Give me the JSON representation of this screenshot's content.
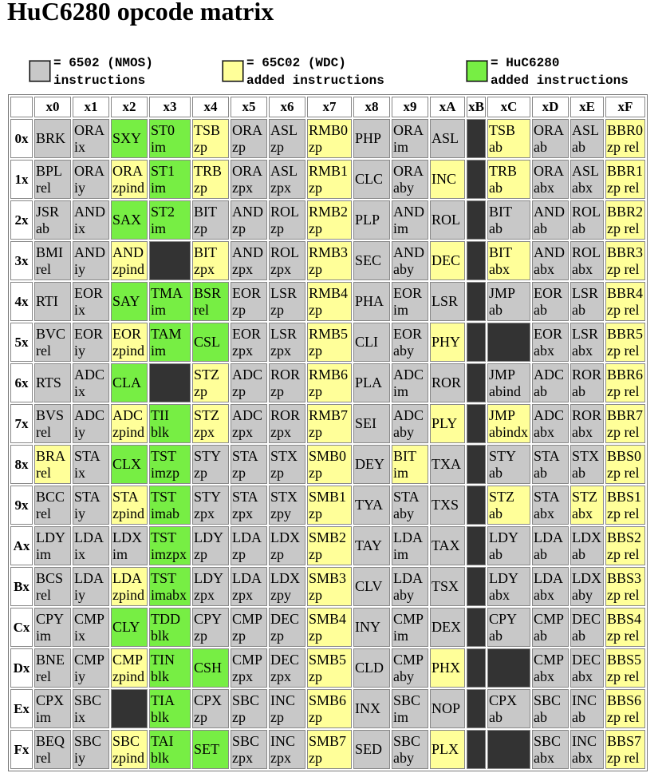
{
  "title": "HuC6280 opcode matrix",
  "legend": [
    {
      "line1": "= 6502 (NMOS)",
      "line2": "instructions",
      "color": "#c8c8c8"
    },
    {
      "line1": "= 65C02 (WDC)",
      "line2": "added instructions",
      "color": "#ffff99"
    },
    {
      "line1": "= HuC6280",
      "line2": "added instructions",
      "color": "#77ee44"
    }
  ],
  "col_headers": [
    "x0",
    "x1",
    "x2",
    "x3",
    "x4",
    "x5",
    "x6",
    "x7",
    "x8",
    "x9",
    "xA",
    "xB",
    "xC",
    "xD",
    "xE",
    "xF"
  ],
  "rows": [
    {
      "label": "0x",
      "cells": [
        [
          "BRK",
          "",
          "n"
        ],
        [
          "ORA",
          "ix",
          "n"
        ],
        [
          "SXY",
          "",
          "h"
        ],
        [
          "ST0",
          "im",
          "h"
        ],
        [
          "TSB",
          "zp",
          "w"
        ],
        [
          "ORA",
          "zp",
          "n"
        ],
        [
          "ASL",
          "zp",
          "n"
        ],
        [
          "RMB0",
          "zp",
          "w"
        ],
        [
          "PHP",
          "",
          "n"
        ],
        [
          "ORA",
          "im",
          "n"
        ],
        [
          "ASL",
          "",
          "n"
        ],
        [
          "",
          "",
          "x"
        ],
        [
          "TSB",
          "ab",
          "w"
        ],
        [
          "ORA",
          "ab",
          "n"
        ],
        [
          "ASL",
          "ab",
          "n"
        ],
        [
          "BBR0",
          "zp rel",
          "w"
        ]
      ]
    },
    {
      "label": "1x",
      "cells": [
        [
          "BPL",
          "rel",
          "n"
        ],
        [
          "ORA",
          "iy",
          "n"
        ],
        [
          "ORA",
          "zpind",
          "w"
        ],
        [
          "ST1",
          "im",
          "h"
        ],
        [
          "TRB",
          "zp",
          "w"
        ],
        [
          "ORA",
          "zpx",
          "n"
        ],
        [
          "ASL",
          "zpx",
          "n"
        ],
        [
          "RMB1",
          "zp",
          "w"
        ],
        [
          "CLC",
          "",
          "n"
        ],
        [
          "ORA",
          "aby",
          "n"
        ],
        [
          "INC",
          "",
          "w"
        ],
        [
          "",
          "",
          "x"
        ],
        [
          "TRB",
          "ab",
          "w"
        ],
        [
          "ORA",
          "abx",
          "n"
        ],
        [
          "ASL",
          "abx",
          "n"
        ],
        [
          "BBR1",
          "zp rel",
          "w"
        ]
      ]
    },
    {
      "label": "2x",
      "cells": [
        [
          "JSR",
          "ab",
          "n"
        ],
        [
          "AND",
          "ix",
          "n"
        ],
        [
          "SAX",
          "",
          "h"
        ],
        [
          "ST2",
          "im",
          "h"
        ],
        [
          "BIT",
          "zp",
          "n"
        ],
        [
          "AND",
          "zp",
          "n"
        ],
        [
          "ROL",
          "zp",
          "n"
        ],
        [
          "RMB2",
          "zp",
          "w"
        ],
        [
          "PLP",
          "",
          "n"
        ],
        [
          "AND",
          "im",
          "n"
        ],
        [
          "ROL",
          "",
          "n"
        ],
        [
          "",
          "",
          "x"
        ],
        [
          "BIT",
          "ab",
          "n"
        ],
        [
          "AND",
          "ab",
          "n"
        ],
        [
          "ROL",
          "ab",
          "n"
        ],
        [
          "BBR2",
          "zp rel",
          "w"
        ]
      ]
    },
    {
      "label": "3x",
      "cells": [
        [
          "BMI",
          "rel",
          "n"
        ],
        [
          "AND",
          "iy",
          "n"
        ],
        [
          "AND",
          "zpind",
          "w"
        ],
        [
          "",
          "",
          "x"
        ],
        [
          "BIT",
          "zpx",
          "w"
        ],
        [
          "AND",
          "zpx",
          "n"
        ],
        [
          "ROL",
          "zpx",
          "n"
        ],
        [
          "RMB3",
          "zp",
          "w"
        ],
        [
          "SEC",
          "",
          "n"
        ],
        [
          "AND",
          "aby",
          "n"
        ],
        [
          "DEC",
          "",
          "w"
        ],
        [
          "",
          "",
          "x"
        ],
        [
          "BIT",
          "abx",
          "w"
        ],
        [
          "AND",
          "abx",
          "n"
        ],
        [
          "ROL",
          "abx",
          "n"
        ],
        [
          "BBR3",
          "zp rel",
          "w"
        ]
      ]
    },
    {
      "label": "4x",
      "cells": [
        [
          "RTI",
          "",
          "n"
        ],
        [
          "EOR",
          "ix",
          "n"
        ],
        [
          "SAY",
          "",
          "h"
        ],
        [
          "TMA",
          "im",
          "h"
        ],
        [
          "BSR",
          "rel",
          "h"
        ],
        [
          "EOR",
          "zp",
          "n"
        ],
        [
          "LSR",
          "zp",
          "n"
        ],
        [
          "RMB4",
          "zp",
          "w"
        ],
        [
          "PHA",
          "",
          "n"
        ],
        [
          "EOR",
          "im",
          "n"
        ],
        [
          "LSR",
          "",
          "n"
        ],
        [
          "",
          "",
          "x"
        ],
        [
          "JMP",
          "ab",
          "n"
        ],
        [
          "EOR",
          "ab",
          "n"
        ],
        [
          "LSR",
          "ab",
          "n"
        ],
        [
          "BBR4",
          "zp rel",
          "w"
        ]
      ]
    },
    {
      "label": "5x",
      "cells": [
        [
          "BVC",
          "rel",
          "n"
        ],
        [
          "EOR",
          "iy",
          "n"
        ],
        [
          "EOR",
          "zpind",
          "w"
        ],
        [
          "TAM",
          "im",
          "h"
        ],
        [
          "CSL",
          "",
          "h"
        ],
        [
          "EOR",
          "zpx",
          "n"
        ],
        [
          "LSR",
          "zpx",
          "n"
        ],
        [
          "RMB5",
          "zp",
          "w"
        ],
        [
          "CLI",
          "",
          "n"
        ],
        [
          "EOR",
          "aby",
          "n"
        ],
        [
          "PHY",
          "",
          "w"
        ],
        [
          "",
          "",
          "x"
        ],
        [
          "",
          "",
          "x"
        ],
        [
          "EOR",
          "abx",
          "n"
        ],
        [
          "LSR",
          "abx",
          "n"
        ],
        [
          "BBR5",
          "zp rel",
          "w"
        ]
      ]
    },
    {
      "label": "6x",
      "cells": [
        [
          "RTS",
          "",
          "n"
        ],
        [
          "ADC",
          "ix",
          "n"
        ],
        [
          "CLA",
          "",
          "h"
        ],
        [
          "",
          "",
          "x"
        ],
        [
          "STZ",
          "zp",
          "w"
        ],
        [
          "ADC",
          "zp",
          "n"
        ],
        [
          "ROR",
          "zp",
          "n"
        ],
        [
          "RMB6",
          "zp",
          "w"
        ],
        [
          "PLA",
          "",
          "n"
        ],
        [
          "ADC",
          "im",
          "n"
        ],
        [
          "ROR",
          "",
          "n"
        ],
        [
          "",
          "",
          "x"
        ],
        [
          "JMP",
          "abind",
          "n"
        ],
        [
          "ADC",
          "ab",
          "n"
        ],
        [
          "ROR",
          "ab",
          "n"
        ],
        [
          "BBR6",
          "zp rel",
          "w"
        ]
      ]
    },
    {
      "label": "7x",
      "cells": [
        [
          "BVS",
          "rel",
          "n"
        ],
        [
          "ADC",
          "iy",
          "n"
        ],
        [
          "ADC",
          "zpind",
          "w"
        ],
        [
          "TII",
          "blk",
          "h"
        ],
        [
          "STZ",
          "zpx",
          "w"
        ],
        [
          "ADC",
          "zpx",
          "n"
        ],
        [
          "ROR",
          "zpx",
          "n"
        ],
        [
          "RMB7",
          "zp",
          "w"
        ],
        [
          "SEI",
          "",
          "n"
        ],
        [
          "ADC",
          "aby",
          "n"
        ],
        [
          "PLY",
          "",
          "w"
        ],
        [
          "",
          "",
          "x"
        ],
        [
          "JMP",
          "abindx",
          "w"
        ],
        [
          "ADC",
          "abx",
          "n"
        ],
        [
          "ROR",
          "abx",
          "n"
        ],
        [
          "BBR7",
          "zp rel",
          "w"
        ]
      ]
    },
    {
      "label": "8x",
      "cells": [
        [
          "BRA",
          "rel",
          "w"
        ],
        [
          "STA",
          "ix",
          "n"
        ],
        [
          "CLX",
          "",
          "h"
        ],
        [
          "TST",
          "imzp",
          "h"
        ],
        [
          "STY",
          "zp",
          "n"
        ],
        [
          "STA",
          "zp",
          "n"
        ],
        [
          "STX",
          "zp",
          "n"
        ],
        [
          "SMB0",
          "zp",
          "w"
        ],
        [
          "DEY",
          "",
          "n"
        ],
        [
          "BIT",
          "im",
          "w"
        ],
        [
          "TXA",
          "",
          "n"
        ],
        [
          "",
          "",
          "x"
        ],
        [
          "STY",
          "ab",
          "n"
        ],
        [
          "STA",
          "ab",
          "n"
        ],
        [
          "STX",
          "ab",
          "n"
        ],
        [
          "BBS0",
          "zp rel",
          "w"
        ]
      ]
    },
    {
      "label": "9x",
      "cells": [
        [
          "BCC",
          "rel",
          "n"
        ],
        [
          "STA",
          "iy",
          "n"
        ],
        [
          "STA",
          "zpind",
          "w"
        ],
        [
          "TST",
          "imab",
          "h"
        ],
        [
          "STY",
          "zpx",
          "n"
        ],
        [
          "STA",
          "zpx",
          "n"
        ],
        [
          "STX",
          "zpy",
          "n"
        ],
        [
          "SMB1",
          "zp",
          "w"
        ],
        [
          "TYA",
          "",
          "n"
        ],
        [
          "STA",
          "aby",
          "n"
        ],
        [
          "TXS",
          "",
          "n"
        ],
        [
          "",
          "",
          "x"
        ],
        [
          "STZ",
          "ab",
          "w"
        ],
        [
          "STA",
          "abx",
          "n"
        ],
        [
          "STZ",
          "abx",
          "w"
        ],
        [
          "BBS1",
          "zp rel",
          "w"
        ]
      ]
    },
    {
      "label": "Ax",
      "cells": [
        [
          "LDY",
          "im",
          "n"
        ],
        [
          "LDA",
          "ix",
          "n"
        ],
        [
          "LDX",
          "im",
          "n"
        ],
        [
          "TST",
          "imzpx",
          "h"
        ],
        [
          "LDY",
          "zp",
          "n"
        ],
        [
          "LDA",
          "zp",
          "n"
        ],
        [
          "LDX",
          "zp",
          "n"
        ],
        [
          "SMB2",
          "zp",
          "w"
        ],
        [
          "TAY",
          "",
          "n"
        ],
        [
          "LDA",
          "im",
          "n"
        ],
        [
          "TAX",
          "",
          "n"
        ],
        [
          "",
          "",
          "x"
        ],
        [
          "LDY",
          "ab",
          "n"
        ],
        [
          "LDA",
          "ab",
          "n"
        ],
        [
          "LDX",
          "ab",
          "n"
        ],
        [
          "BBS2",
          "zp rel",
          "w"
        ]
      ]
    },
    {
      "label": "Bx",
      "cells": [
        [
          "BCS",
          "rel",
          "n"
        ],
        [
          "LDA",
          "iy",
          "n"
        ],
        [
          "LDA",
          "zpind",
          "w"
        ],
        [
          "TST",
          "imabx",
          "h"
        ],
        [
          "LDY",
          "zpx",
          "n"
        ],
        [
          "LDA",
          "zpx",
          "n"
        ],
        [
          "LDX",
          "zpy",
          "n"
        ],
        [
          "SMB3",
          "zp",
          "w"
        ],
        [
          "CLV",
          "",
          "n"
        ],
        [
          "LDA",
          "aby",
          "n"
        ],
        [
          "TSX",
          "",
          "n"
        ],
        [
          "",
          "",
          "x"
        ],
        [
          "LDY",
          "abx",
          "n"
        ],
        [
          "LDA",
          "abx",
          "n"
        ],
        [
          "LDX",
          "aby",
          "n"
        ],
        [
          "BBS3",
          "zp rel",
          "w"
        ]
      ]
    },
    {
      "label": "Cx",
      "cells": [
        [
          "CPY",
          "im",
          "n"
        ],
        [
          "CMP",
          "ix",
          "n"
        ],
        [
          "CLY",
          "",
          "h"
        ],
        [
          "TDD",
          "blk",
          "h"
        ],
        [
          "CPY",
          "zp",
          "n"
        ],
        [
          "CMP",
          "zp",
          "n"
        ],
        [
          "DEC",
          "zp",
          "n"
        ],
        [
          "SMB4",
          "zp",
          "w"
        ],
        [
          "INY",
          "",
          "n"
        ],
        [
          "CMP",
          "im",
          "n"
        ],
        [
          "DEX",
          "",
          "n"
        ],
        [
          "",
          "",
          "x"
        ],
        [
          "CPY",
          "ab",
          "n"
        ],
        [
          "CMP",
          "ab",
          "n"
        ],
        [
          "DEC",
          "ab",
          "n"
        ],
        [
          "BBS4",
          "zp rel",
          "w"
        ]
      ]
    },
    {
      "label": "Dx",
      "cells": [
        [
          "BNE",
          "rel",
          "n"
        ],
        [
          "CMP",
          "iy",
          "n"
        ],
        [
          "CMP",
          "zpind",
          "w"
        ],
        [
          "TIN",
          "blk",
          "h"
        ],
        [
          "CSH",
          "",
          "h"
        ],
        [
          "CMP",
          "zpx",
          "n"
        ],
        [
          "DEC",
          "zpx",
          "n"
        ],
        [
          "SMB5",
          "zp",
          "w"
        ],
        [
          "CLD",
          "",
          "n"
        ],
        [
          "CMP",
          "aby",
          "n"
        ],
        [
          "PHX",
          "",
          "w"
        ],
        [
          "",
          "",
          "x"
        ],
        [
          "",
          "",
          "x"
        ],
        [
          "CMP",
          "abx",
          "n"
        ],
        [
          "DEC",
          "abx",
          "n"
        ],
        [
          "BBS5",
          "zp rel",
          "w"
        ]
      ]
    },
    {
      "label": "Ex",
      "cells": [
        [
          "CPX",
          "im",
          "n"
        ],
        [
          "SBC",
          "ix",
          "n"
        ],
        [
          "",
          "",
          "x"
        ],
        [
          "TIA",
          "blk",
          "h"
        ],
        [
          "CPX",
          "zp",
          "n"
        ],
        [
          "SBC",
          "zp",
          "n"
        ],
        [
          "INC",
          "zp",
          "n"
        ],
        [
          "SMB6",
          "zp",
          "w"
        ],
        [
          "INX",
          "",
          "n"
        ],
        [
          "SBC",
          "im",
          "n"
        ],
        [
          "NOP",
          "",
          "n"
        ],
        [
          "",
          "",
          "x"
        ],
        [
          "CPX",
          "ab",
          "n"
        ],
        [
          "SBC",
          "ab",
          "n"
        ],
        [
          "INC",
          "ab",
          "n"
        ],
        [
          "BBS6",
          "zp rel",
          "w"
        ]
      ]
    },
    {
      "label": "Fx",
      "cells": [
        [
          "BEQ",
          "rel",
          "n"
        ],
        [
          "SBC",
          "iy",
          "n"
        ],
        [
          "SBC",
          "zpind",
          "w"
        ],
        [
          "TAI",
          "blk",
          "h"
        ],
        [
          "SET",
          "",
          "h"
        ],
        [
          "SBC",
          "zpx",
          "n"
        ],
        [
          "INC",
          "zpx",
          "n"
        ],
        [
          "SMB7",
          "zp",
          "w"
        ],
        [
          "SED",
          "",
          "n"
        ],
        [
          "SBC",
          "aby",
          "n"
        ],
        [
          "PLX",
          "",
          "w"
        ],
        [
          "",
          "",
          "x"
        ],
        [
          "",
          "",
          "x"
        ],
        [
          "SBC",
          "abx",
          "n"
        ],
        [
          "INC",
          "abx",
          "n"
        ],
        [
          "BBS7",
          "zp rel",
          "w"
        ]
      ]
    }
  ]
}
